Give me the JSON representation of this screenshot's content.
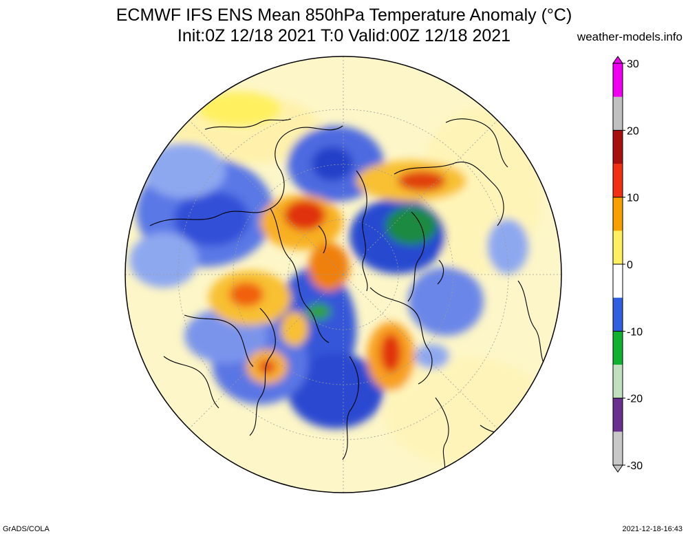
{
  "header": {
    "title": "ECMWF IFS ENS Mean 850hPa Temperature Anomaly (°C)",
    "subtitle": "Init:0Z 12/18 2021  T:0 Valid:00Z 12/18 2021",
    "site": "weather-models.info"
  },
  "footer": {
    "credit": "GrADS/COLA",
    "timestamp": "2021-12-18-16:43"
  },
  "map": {
    "projection": "north polar stereographic",
    "variable": "850hPa temperature anomaly",
    "units": "°C"
  },
  "colorbar": {
    "min": -30,
    "max": 30,
    "tick_labels": [
      "30",
      "20",
      "10",
      "0",
      "-10",
      "-20",
      "-30"
    ],
    "colors": [
      "#f000f0",
      "#c0c0c0",
      "#a81010",
      "#f03010",
      "#f8a000",
      "#fff060",
      "#ffffff",
      "#3060e0",
      "#10b030",
      "#c0e0c0",
      "#6a3090",
      "#c8c8c8"
    ]
  }
}
